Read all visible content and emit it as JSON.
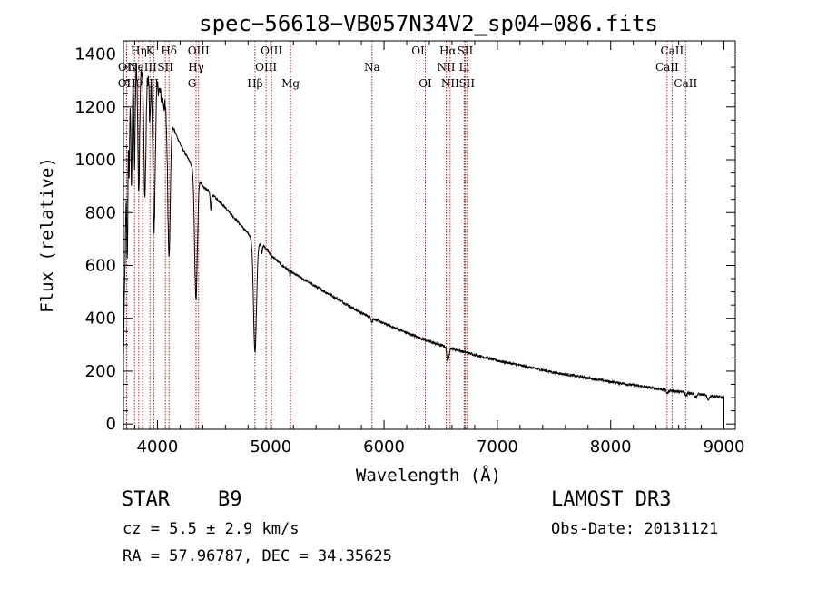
{
  "chart_data": {
    "type": "line",
    "title": "spec−56618−VB057N34V2_sp04−086.fits",
    "xlabel": "Wavelength (Å)",
    "ylabel": "Flux (relative)",
    "xlim": [
      3700,
      9100
    ],
    "ylim": [
      -20,
      1450
    ],
    "x_ticks": [
      4000,
      5000,
      6000,
      7000,
      8000,
      9000
    ],
    "x_tick_labels": [
      "4000",
      "5000",
      "6000",
      "7000",
      "8000",
      "9000"
    ],
    "y_ticks": [
      0,
      200,
      400,
      600,
      800,
      1000,
      1200,
      1400
    ],
    "y_tick_labels": [
      "0",
      "200",
      "400",
      "600",
      "800",
      "1000",
      "1200",
      "1400"
    ],
    "continuum": {
      "x": [
        3700,
        3740,
        3760,
        3800,
        3850,
        3900,
        3950,
        4000,
        4100,
        4200,
        4300,
        4400,
        4500,
        4600,
        4700,
        4800,
        4860,
        4900,
        4950,
        5000,
        5100,
        5200,
        5400,
        5600,
        5800,
        6000,
        6200,
        6400,
        6600,
        6800,
        7000,
        7500,
        8000,
        8500,
        8800,
        9000
      ],
      "y": [
        250,
        1280,
        1340,
        1380,
        1360,
        1320,
        1300,
        1280,
        1160,
        1060,
        980,
        900,
        860,
        820,
        770,
        720,
        690,
        680,
        670,
        640,
        600,
        570,
        520,
        470,
        420,
        380,
        345,
        312,
        285,
        262,
        240,
        195,
        160,
        128,
        112,
        100
      ]
    },
    "absorption_lines": [
      {
        "x": 3735,
        "depth": 500,
        "width": 5
      },
      {
        "x": 3750,
        "depth": 350,
        "width": 5
      },
      {
        "x": 3771,
        "depth": 450,
        "width": 6
      },
      {
        "x": 3798,
        "depth": 400,
        "width": 6
      },
      {
        "x": 3835,
        "depth": 480,
        "width": 8
      },
      {
        "x": 3889,
        "depth": 470,
        "width": 9
      },
      {
        "x": 3933,
        "depth": 180,
        "width": 5
      },
      {
        "x": 3970,
        "depth": 560,
        "width": 10
      },
      {
        "x": 4102,
        "depth": 520,
        "width": 11
      },
      {
        "x": 4340,
        "depth": 480,
        "width": 12
      },
      {
        "x": 4471,
        "depth": 60,
        "width": 5
      },
      {
        "x": 4861,
        "depth": 420,
        "width": 13
      },
      {
        "x": 4922,
        "depth": 30,
        "width": 4
      },
      {
        "x": 5170,
        "depth": 20,
        "width": 4
      },
      {
        "x": 5893,
        "depth": 18,
        "width": 5
      },
      {
        "x": 6563,
        "depth": 55,
        "width": 9
      },
      {
        "x": 8500,
        "depth": 12,
        "width": 8
      },
      {
        "x": 8665,
        "depth": 12,
        "width": 8
      },
      {
        "x": 8750,
        "depth": 14,
        "width": 10
      },
      {
        "x": 8860,
        "depth": 16,
        "width": 10
      }
    ],
    "noise_amplitude": 5,
    "line_markers": [
      {
        "label": "OII",
        "x": 3727,
        "row": 2
      },
      {
        "label": "OII",
        "x": 3729,
        "row": 1
      },
      {
        "label": "Hη",
        "x": 3835,
        "row": 0
      },
      {
        "label": "Hθ",
        "x": 3798,
        "row": 2
      },
      {
        "label": "NeIII",
        "x": 3869,
        "row": 1
      },
      {
        "label": "K",
        "x": 3934,
        "row": 0
      },
      {
        "label": "H",
        "x": 3969,
        "row": 2
      },
      {
        "label": "SII",
        "x": 4070,
        "row": 1
      },
      {
        "label": "Hδ",
        "x": 4102,
        "row": 0
      },
      {
        "label": "OIII",
        "x": 4363,
        "row": 0
      },
      {
        "label": "Hγ",
        "x": 4341,
        "row": 1
      },
      {
        "label": "G",
        "x": 4305,
        "row": 2
      },
      {
        "label": "Hβ",
        "x": 4861,
        "row": 2
      },
      {
        "label": "OIII",
        "x": 5007,
        "row": 0
      },
      {
        "label": "OIII",
        "x": 4959,
        "row": 1
      },
      {
        "label": "Mg",
        "x": 5175,
        "row": 2
      },
      {
        "label": "Na",
        "x": 5894,
        "row": 1
      },
      {
        "label": "OI",
        "x": 6300,
        "row": 0
      },
      {
        "label": "OI",
        "x": 6364,
        "row": 2
      },
      {
        "label": "Hα",
        "x": 6563,
        "row": 0
      },
      {
        "label": "NII",
        "x": 6548,
        "row": 1
      },
      {
        "label": "NII",
        "x": 6583,
        "row": 2
      },
      {
        "label": "SII",
        "x": 6716,
        "row": 0
      },
      {
        "label": "Li",
        "x": 6708,
        "row": 1
      },
      {
        "label": "SII",
        "x": 6731,
        "row": 2
      },
      {
        "label": "CaII",
        "x": 8542,
        "row": 0
      },
      {
        "label": "CaII",
        "x": 8498,
        "row": 1
      },
      {
        "label": "CaII",
        "x": 8662,
        "row": 2
      }
    ]
  },
  "info": {
    "class_label": "STAR",
    "subclass": "B9",
    "survey": "LAMOST DR3",
    "cz": "cz = 5.5 ± 2.9 km/s",
    "obs_date": "Obs-Date: 20131121",
    "coords": "RA =  57.96787, DEC =  34.35625"
  },
  "colors": {
    "spectrum": "#000000",
    "marker_line": "#b22222",
    "axis": "#000000"
  }
}
